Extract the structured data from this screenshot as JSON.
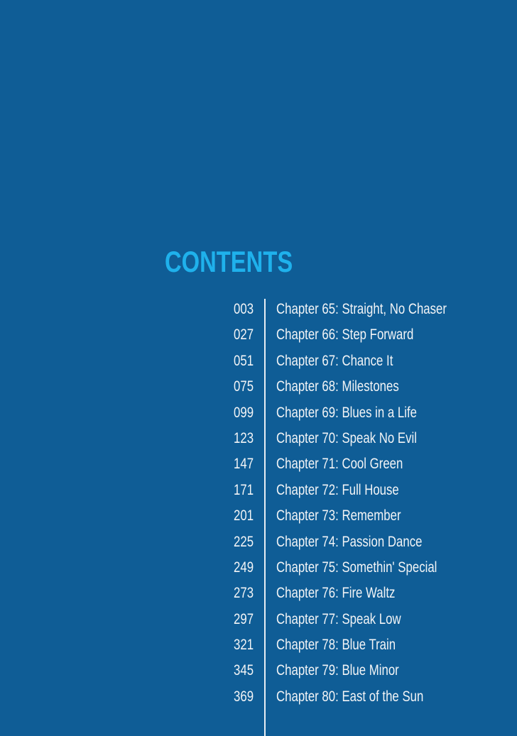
{
  "title": "CONTENTS",
  "colors": {
    "background": "#0f5d96",
    "title": "#1fb1ec",
    "text": "#f2f4f6"
  },
  "entries": [
    {
      "page": "003",
      "chapter": "Chapter 65: Straight, No Chaser"
    },
    {
      "page": "027",
      "chapter": "Chapter 66: Step Forward"
    },
    {
      "page": "051",
      "chapter": "Chapter 67: Chance It"
    },
    {
      "page": "075",
      "chapter": "Chapter 68: Milestones"
    },
    {
      "page": "099",
      "chapter": "Chapter 69: Blues in a Life"
    },
    {
      "page": "123",
      "chapter": "Chapter 70: Speak No Evil"
    },
    {
      "page": "147",
      "chapter": "Chapter 71: Cool Green"
    },
    {
      "page": "171",
      "chapter": "Chapter 72: Full House"
    },
    {
      "page": "201",
      "chapter": "Chapter 73: Remember"
    },
    {
      "page": "225",
      "chapter": "Chapter 74: Passion Dance"
    },
    {
      "page": "249",
      "chapter": "Chapter 75: Somethin' Special"
    },
    {
      "page": "273",
      "chapter": "Chapter 76: Fire Waltz"
    },
    {
      "page": "297",
      "chapter": "Chapter 77: Speak Low"
    },
    {
      "page": "321",
      "chapter": "Chapter 78: Blue Train"
    },
    {
      "page": "345",
      "chapter": "Chapter 79: Blue Minor"
    },
    {
      "page": "369",
      "chapter": "Chapter 80: East of the Sun"
    }
  ]
}
